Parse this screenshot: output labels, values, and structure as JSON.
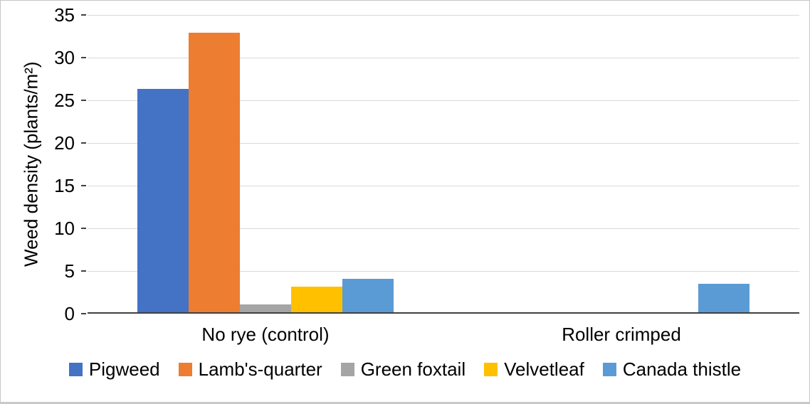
{
  "chart_data": {
    "type": "bar",
    "categories": [
      "No rye (control)",
      "Roller crimped"
    ],
    "series": [
      {
        "name": "Pigweed",
        "color": "#4472C4",
        "values": [
          26.3,
          0
        ]
      },
      {
        "name": "Lamb's-quarter",
        "color": "#ED7D31",
        "values": [
          32.9,
          0
        ]
      },
      {
        "name": "Green foxtail",
        "color": "#A5A5A5",
        "values": [
          1.1,
          0
        ]
      },
      {
        "name": "Velvetleaf",
        "color": "#FFC000",
        "values": [
          3.2,
          0
        ]
      },
      {
        "name": "Canada thistle",
        "color": "#5B9BD5",
        "values": [
          4.1,
          3.5
        ]
      }
    ],
    "ylabel": "Weed density (plants/m²)",
    "ylim": [
      0,
      35
    ],
    "yticks": [
      0,
      5,
      10,
      15,
      20,
      25,
      30,
      35
    ],
    "grid": true,
    "legend_position": "bottom",
    "colors": {
      "gridline": "#D9D9D9",
      "axis_line": "#404040",
      "text": "#000000"
    }
  }
}
